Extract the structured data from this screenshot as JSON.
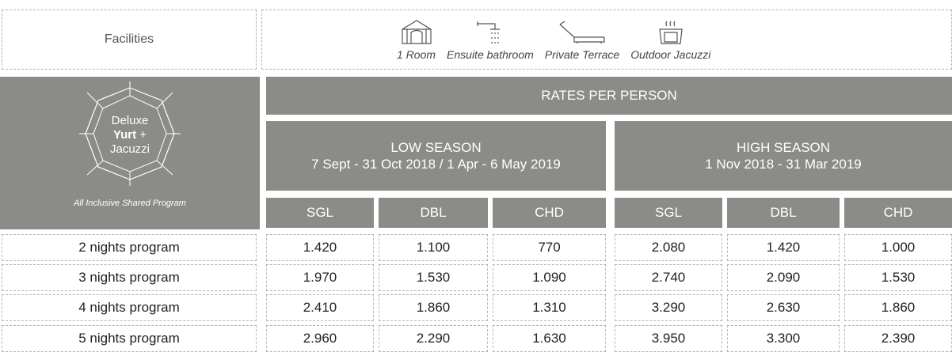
{
  "facilities": {
    "label": "Facilities",
    "items": [
      "1 Room",
      "Ensuite bathroom",
      "Private Terrace",
      "Outdoor Jacuzzi"
    ]
  },
  "logo": {
    "line1": "Deluxe",
    "line2_bold": "Yurt",
    "line2": "+",
    "line3": "Jacuzzi",
    "caption": "All Inclusive Shared Program"
  },
  "rates_title": "RATES PER PERSON",
  "seasons": [
    {
      "name": "LOW SEASON",
      "dates": "7 Sept - 31 Oct 2018 / 1 Apr - 6 May 2019",
      "columns": [
        "SGL",
        "DBL",
        "CHD"
      ]
    },
    {
      "name": "HIGH SEASON",
      "dates": "1 Nov 2018 - 31 Mar 2019",
      "columns": [
        "SGL",
        "DBL",
        "CHD"
      ]
    }
  ],
  "rows": [
    {
      "label": "2 nights program",
      "values": [
        "1.420",
        "1.100",
        "770",
        "2.080",
        "1.420",
        "1.000"
      ]
    },
    {
      "label": "3 nights program",
      "values": [
        "1.970",
        "1.530",
        "1.090",
        "2.740",
        "2.090",
        "1.530"
      ]
    },
    {
      "label": "4 nights program",
      "values": [
        "2.410",
        "1.860",
        "1.310",
        "3.290",
        "2.630",
        "1.860"
      ]
    },
    {
      "label": "5 nights program",
      "values": [
        "2.960",
        "2.290",
        "1.630",
        "3.950",
        "3.300",
        "2.390"
      ]
    }
  ]
}
